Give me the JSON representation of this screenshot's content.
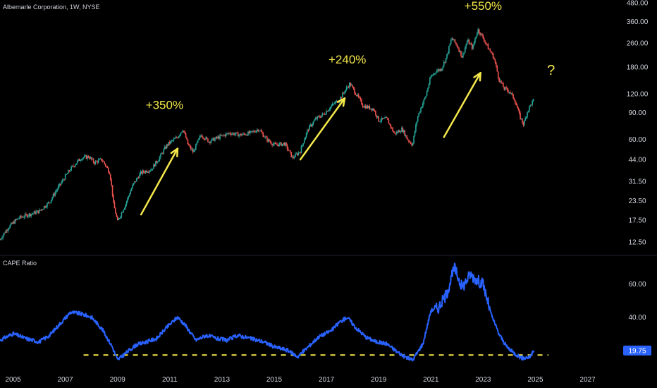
{
  "header": {
    "title": "Albemarle Corporation, 1W, NYSE"
  },
  "colors": {
    "background": "#000000",
    "up_candle": "#26a69a",
    "down_candle": "#ef5350",
    "annotation": "#f5e84a",
    "cape_line": "#2962ff",
    "cape_badge": "#2962ff",
    "support_line": "#f5e84a",
    "axis_text": "#d1d4dc"
  },
  "chart_data": [
    {
      "type": "line",
      "name": "price-panel",
      "title": "Albemarle Corporation, 1W, NYSE",
      "scale": "log",
      "ylim": [
        11,
        480
      ],
      "xlim": [
        2004.5,
        2028.2
      ],
      "yticks": [
        "480.00",
        "360.00",
        "260.00",
        "180.00",
        "120.00",
        "90.00",
        "60.00",
        "44.00",
        "31.50",
        "23.50",
        "17.50",
        "12.50"
      ],
      "series": [
        {
          "points": [
            [
              2004.5,
              13
            ],
            [
              2004.8,
              15.5
            ],
            [
              2005.2,
              18
            ],
            [
              2005.6,
              19
            ],
            [
              2006.0,
              20
            ],
            [
              2006.4,
              23
            ],
            [
              2006.8,
              30
            ],
            [
              2007.2,
              38
            ],
            [
              2007.6,
              45
            ],
            [
              2007.9,
              46
            ],
            [
              2008.1,
              42
            ],
            [
              2008.4,
              44
            ],
            [
              2008.7,
              36
            ],
            [
              2008.85,
              22
            ],
            [
              2009.0,
              17
            ],
            [
              2009.3,
              22
            ],
            [
              2009.6,
              30
            ],
            [
              2009.9,
              36
            ],
            [
              2010.3,
              38
            ],
            [
              2010.6,
              45
            ],
            [
              2010.9,
              55
            ],
            [
              2011.3,
              62
            ],
            [
              2011.5,
              70
            ],
            [
              2011.7,
              55
            ],
            [
              2011.9,
              49
            ],
            [
              2012.2,
              64
            ],
            [
              2012.5,
              58
            ],
            [
              2012.9,
              62
            ],
            [
              2013.3,
              66
            ],
            [
              2013.7,
              64
            ],
            [
              2014.1,
              66
            ],
            [
              2014.4,
              70
            ],
            [
              2014.7,
              60
            ],
            [
              2015.0,
              55
            ],
            [
              2015.4,
              56
            ],
            [
              2015.7,
              45
            ],
            [
              2016.0,
              50
            ],
            [
              2016.3,
              70
            ],
            [
              2016.6,
              82
            ],
            [
              2016.9,
              88
            ],
            [
              2017.2,
              100
            ],
            [
              2017.5,
              110
            ],
            [
              2017.9,
              140
            ],
            [
              2018.1,
              122
            ],
            [
              2018.4,
              100
            ],
            [
              2018.8,
              95
            ],
            [
              2019.0,
              80
            ],
            [
              2019.3,
              82
            ],
            [
              2019.6,
              65
            ],
            [
              2019.9,
              70
            ],
            [
              2020.1,
              60
            ],
            [
              2020.3,
              55
            ],
            [
              2020.5,
              85
            ],
            [
              2020.8,
              115
            ],
            [
              2021.0,
              155
            ],
            [
              2021.2,
              170
            ],
            [
              2021.4,
              175
            ],
            [
              2021.6,
              210
            ],
            [
              2021.8,
              280
            ],
            [
              2022.0,
              250
            ],
            [
              2022.2,
              210
            ],
            [
              2022.4,
              270
            ],
            [
              2022.6,
              240
            ],
            [
              2022.8,
              320
            ],
            [
              2023.0,
              280
            ],
            [
              2023.2,
              240
            ],
            [
              2023.4,
              210
            ],
            [
              2023.6,
              150
            ],
            [
              2023.8,
              130
            ],
            [
              2024.0,
              125
            ],
            [
              2024.2,
              110
            ],
            [
              2024.4,
              85
            ],
            [
              2024.55,
              75
            ],
            [
              2024.7,
              92
            ],
            [
              2024.8,
              100
            ],
            [
              2024.95,
              110
            ]
          ]
        }
      ],
      "annotations": [
        {
          "text": "+350%",
          "x": 2010.8,
          "y": 95,
          "arrow_from": [
            2009.9,
            19
          ],
          "arrow_to": [
            2011.3,
            52
          ]
        },
        {
          "text": "+240%",
          "x": 2017.8,
          "y": 190,
          "arrow_from": [
            2016.0,
            44
          ],
          "arrow_to": [
            2017.7,
            112
          ]
        },
        {
          "text": "+550%",
          "x": 2023.0,
          "y": 430,
          "arrow_from": [
            2021.5,
            62
          ],
          "arrow_to": [
            2022.9,
            165
          ]
        },
        {
          "text": "?",
          "x": 2025.6,
          "y": 160
        }
      ]
    },
    {
      "type": "line",
      "name": "cape-panel",
      "title": "CAPE Ratio",
      "ylim": [
        12,
        74
      ],
      "xlim": [
        2004.5,
        2028.2
      ],
      "yticks": [
        "60.00",
        "40.00"
      ],
      "last_value": "19.75",
      "support_level": 17,
      "support_range": [
        2007.7,
        2025.5
      ],
      "series": [
        {
          "name": "CAPE Ratio",
          "points": [
            [
              2004.5,
              26
            ],
            [
              2005.0,
              30
            ],
            [
              2005.5,
              27
            ],
            [
              2006.0,
              25
            ],
            [
              2006.4,
              29
            ],
            [
              2006.8,
              36
            ],
            [
              2007.2,
              43
            ],
            [
              2007.6,
              42
            ],
            [
              2008.0,
              40
            ],
            [
              2008.4,
              33
            ],
            [
              2008.8,
              22
            ],
            [
              2009.0,
              14
            ],
            [
              2009.3,
              18
            ],
            [
              2009.7,
              23
            ],
            [
              2010.1,
              25
            ],
            [
              2010.5,
              27
            ],
            [
              2010.9,
              34
            ],
            [
              2011.3,
              40
            ],
            [
              2011.6,
              35
            ],
            [
              2012.0,
              26
            ],
            [
              2012.4,
              29
            ],
            [
              2012.8,
              27
            ],
            [
              2013.2,
              26
            ],
            [
              2013.6,
              29
            ],
            [
              2014.1,
              27
            ],
            [
              2014.6,
              25
            ],
            [
              2015.0,
              22
            ],
            [
              2015.5,
              20
            ],
            [
              2015.9,
              16
            ],
            [
              2016.3,
              22
            ],
            [
              2016.7,
              28
            ],
            [
              2017.2,
              32
            ],
            [
              2017.5,
              37
            ],
            [
              2017.8,
              40
            ],
            [
              2018.1,
              34
            ],
            [
              2018.5,
              28
            ],
            [
              2018.9,
              25
            ],
            [
              2019.3,
              24
            ],
            [
              2019.7,
              19
            ],
            [
              2020.0,
              16
            ],
            [
              2020.3,
              14
            ],
            [
              2020.7,
              24
            ],
            [
              2021.0,
              44
            ],
            [
              2021.3,
              46
            ],
            [
              2021.6,
              54
            ],
            [
              2021.9,
              70
            ],
            [
              2022.2,
              58
            ],
            [
              2022.5,
              66
            ],
            [
              2022.8,
              62
            ],
            [
              2023.0,
              60
            ],
            [
              2023.3,
              42
            ],
            [
              2023.6,
              30
            ],
            [
              2023.9,
              22
            ],
            [
              2024.2,
              18
            ],
            [
              2024.5,
              15
            ],
            [
              2024.8,
              16
            ],
            [
              2024.95,
              19.75
            ]
          ]
        }
      ]
    }
  ],
  "x_axis": {
    "labels": [
      {
        "text": "2005",
        "year": 2005
      },
      {
        "text": "2007",
        "year": 2007
      },
      {
        "text": "2009",
        "year": 2009
      },
      {
        "text": "2011",
        "year": 2011
      },
      {
        "text": "2013",
        "year": 2013
      },
      {
        "text": "2015",
        "year": 2015
      },
      {
        "text": "2017",
        "year": 2017
      },
      {
        "text": "2019",
        "year": 2019
      },
      {
        "text": "2021",
        "year": 2021
      },
      {
        "text": "2023",
        "year": 2023
      },
      {
        "text": "2025",
        "year": 2025
      },
      {
        "text": "2027",
        "year": 2027
      }
    ]
  }
}
